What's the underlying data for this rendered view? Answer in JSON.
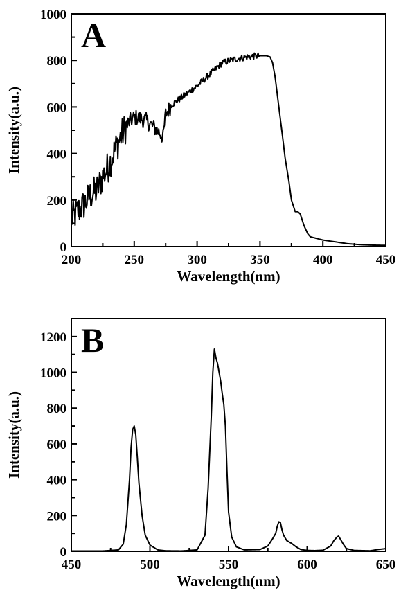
{
  "chart_data": [
    {
      "type": "line",
      "panel_label": "A",
      "xlabel": "Wavelength(nm)",
      "ylabel": "Intensity(a.u.)",
      "xlim": [
        200,
        450
      ],
      "ylim": [
        0,
        1000
      ],
      "xticks": [
        200,
        250,
        300,
        350,
        400,
        450
      ],
      "yticks": [
        0,
        200,
        400,
        600,
        800,
        1000
      ],
      "grid": false,
      "legend": "none",
      "line_color": "#000000",
      "noisy": true,
      "noise_until": 350,
      "series": [
        {
          "x": [
            200,
            205,
            210,
            215,
            220,
            225,
            230,
            235,
            240,
            245,
            250,
            255,
            260,
            265,
            270,
            273,
            275,
            280,
            290,
            300,
            310,
            320,
            330,
            340,
            350,
            355,
            358,
            360,
            362,
            365,
            368,
            370,
            373,
            375,
            378,
            380,
            382,
            385,
            388,
            390,
            395,
            400,
            410,
            420,
            430,
            440,
            450
          ],
          "y": [
            120,
            150,
            180,
            220,
            240,
            300,
            350,
            420,
            480,
            530,
            555,
            550,
            540,
            515,
            490,
            470,
            570,
            610,
            650,
            690,
            740,
            790,
            805,
            815,
            820,
            820,
            815,
            790,
            730,
            600,
            470,
            380,
            280,
            200,
            150,
            150,
            140,
            90,
            55,
            42,
            35,
            28,
            20,
            12,
            8,
            6,
            5
          ]
        }
      ]
    },
    {
      "type": "line",
      "panel_label": "B",
      "xlabel": "Wavelength(nm)",
      "ylabel": "Intensity(a.u.)",
      "xlim": [
        450,
        650
      ],
      "ylim": [
        0,
        1300
      ],
      "xticks": [
        450,
        500,
        550,
        600,
        650
      ],
      "yticks": [
        0,
        200,
        400,
        600,
        800,
        1000,
        1200
      ],
      "grid": false,
      "legend": "none",
      "line_color": "#000000",
      "noisy": false,
      "series": [
        {
          "x": [
            450,
            470,
            480,
            483,
            485,
            487,
            488,
            489,
            490,
            491,
            492,
            493,
            495,
            497,
            500,
            505,
            510,
            520,
            530,
            535,
            537,
            539,
            540,
            541,
            542,
            543,
            544,
            545,
            546,
            547,
            548,
            549,
            550,
            552,
            555,
            560,
            570,
            575,
            578,
            580,
            581,
            582,
            583,
            584,
            585,
            587,
            590,
            593,
            596,
            600,
            605,
            610,
            615,
            617,
            619,
            620,
            621,
            623,
            625,
            630,
            640,
            645,
            650
          ],
          "y": [
            2,
            2,
            8,
            40,
            150,
            400,
            580,
            680,
            700,
            650,
            520,
            380,
            200,
            90,
            35,
            8,
            3,
            2,
            8,
            90,
            350,
            750,
            1000,
            1130,
            1080,
            1050,
            1000,
            950,
            880,
            820,
            700,
            450,
            220,
            80,
            25,
            8,
            10,
            30,
            70,
            100,
            140,
            165,
            160,
            120,
            90,
            60,
            45,
            25,
            10,
            5,
            4,
            6,
            30,
            60,
            80,
            85,
            70,
            40,
            15,
            5,
            3,
            10,
            15
          ]
        }
      ]
    }
  ]
}
